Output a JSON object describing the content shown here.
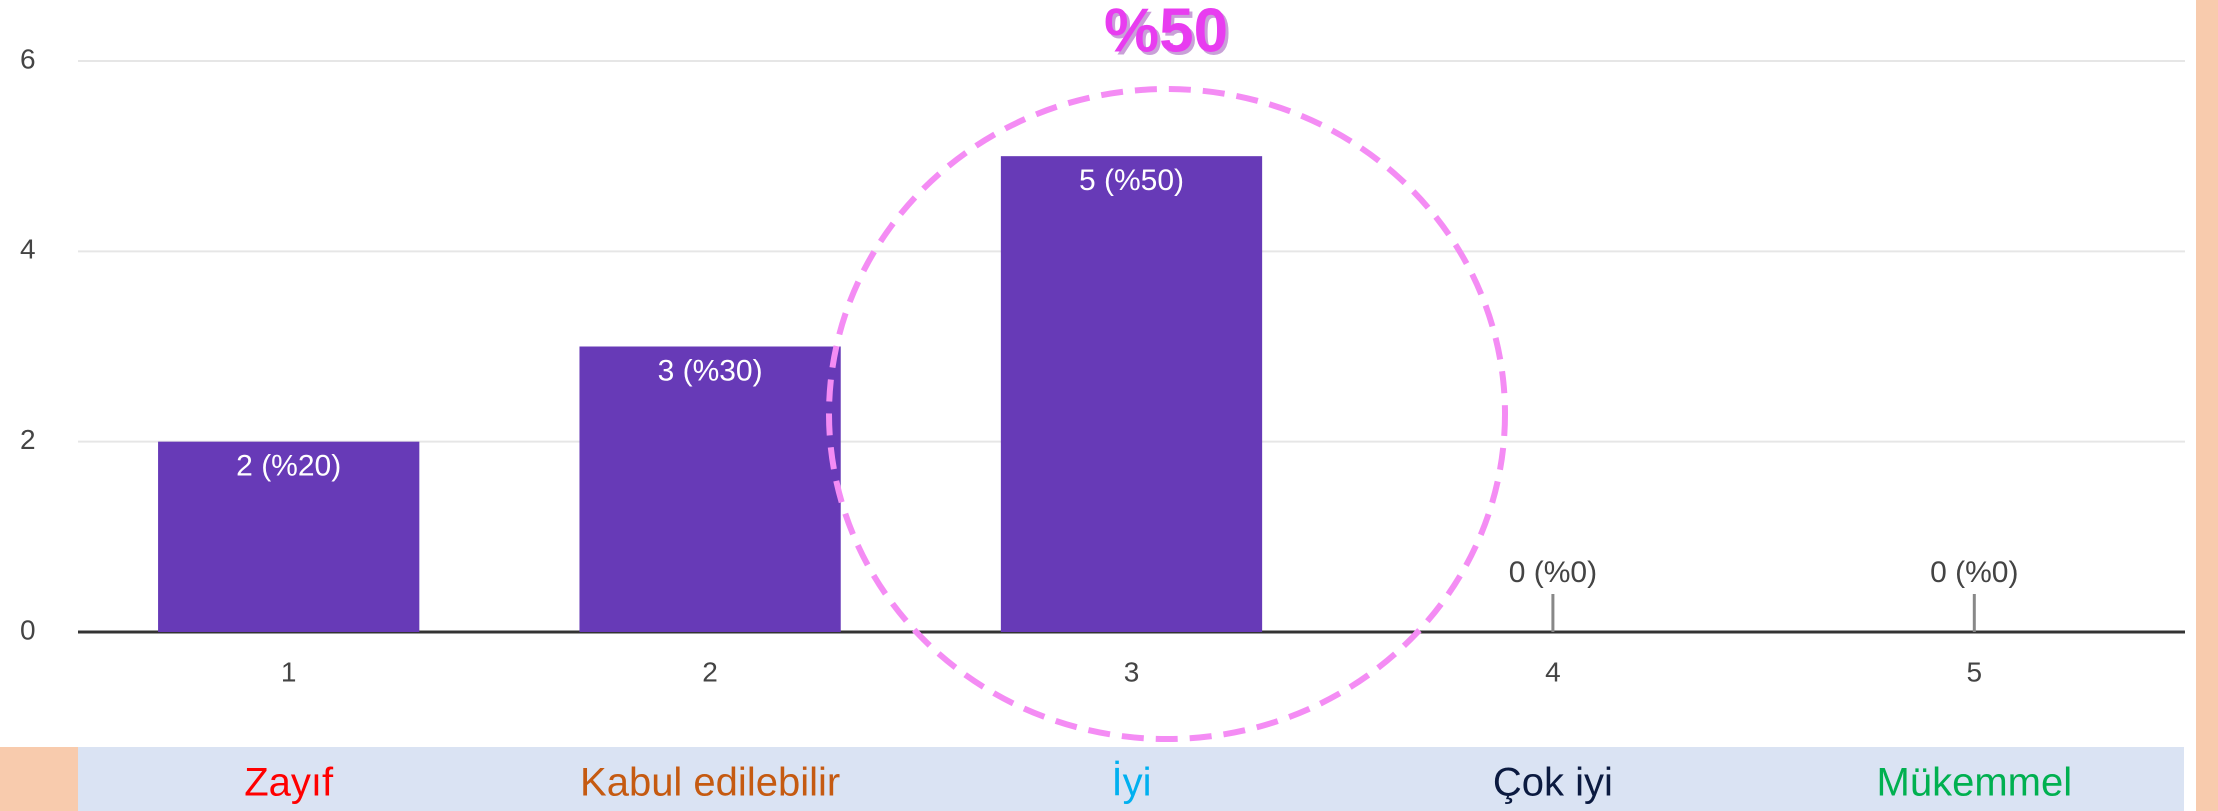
{
  "chart_data": {
    "type": "bar",
    "categories": [
      "1",
      "2",
      "3",
      "4",
      "5"
    ],
    "values": [
      2,
      3,
      5,
      0,
      0
    ],
    "value_labels": [
      "2 (%20)",
      "3 (%30)",
      "5 (%50)",
      "0 (%0)",
      "0 (%0)"
    ],
    "color": "#673ab7",
    "ylim": [
      0,
      6
    ],
    "yticks": [
      0,
      2,
      4,
      6
    ],
    "grid": true,
    "annotation": "%50",
    "annotation_color": "#e83cf0",
    "rating_labels": [
      "Zayıf",
      "Kabul edilebilir",
      "İyi",
      "Çok iyi",
      "Mükemmel"
    ],
    "rating_colors": [
      "#ff0000",
      "#c55a11",
      "#00b0f0",
      "#0b1a40",
      "#00b050"
    ]
  }
}
